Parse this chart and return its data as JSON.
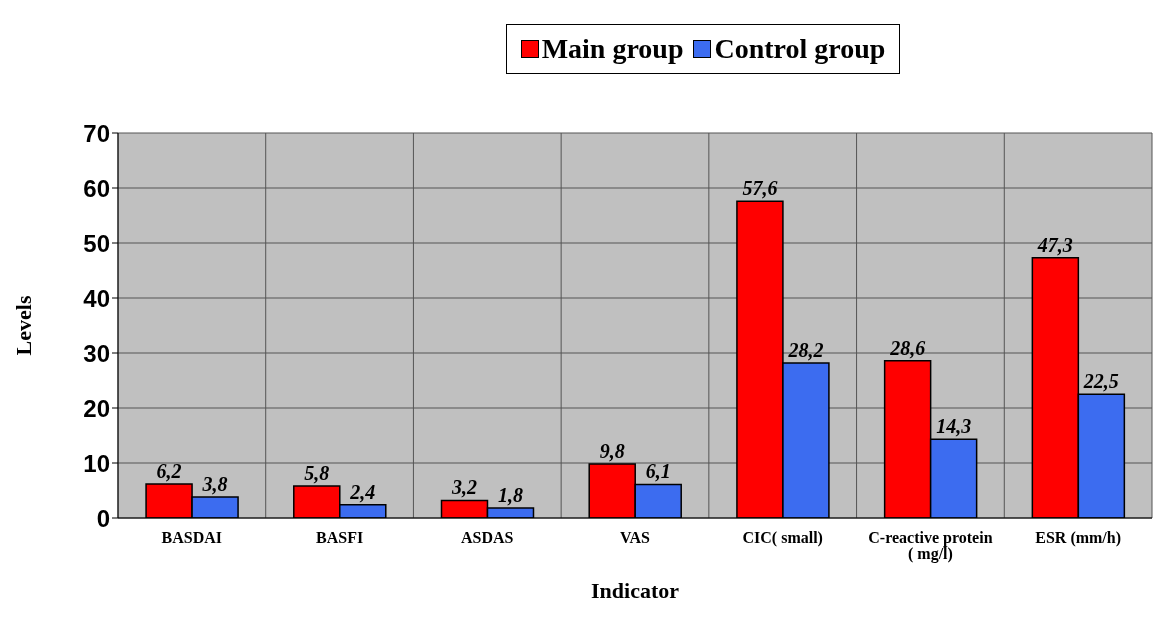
{
  "chart_data": {
    "type": "bar",
    "xlabel": "Indicator",
    "ylabel": "Levels",
    "categories": [
      "BASDAI",
      "BASFI",
      "ASDAS",
      "VAS",
      "CIC( small)",
      "C-reactive protein ( mg/l)",
      "ESR (mm/h)"
    ],
    "series": [
      {
        "name": "Main group",
        "color": "#ff0000",
        "values": [
          6.2,
          5.8,
          3.2,
          9.8,
          57.6,
          28.6,
          47.3
        ],
        "value_labels": [
          "6,2",
          "5,8",
          "3,2",
          "9,8",
          "57,6",
          "28,6",
          "47,3"
        ]
      },
      {
        "name": "Control group",
        "color": "#3c6cf0",
        "values": [
          3.8,
          2.4,
          1.8,
          6.1,
          28.2,
          14.3,
          22.5
        ],
        "value_labels": [
          "3,8",
          "2,4",
          "1,8",
          "6,1",
          "28,2",
          "14,3",
          "22,5"
        ]
      }
    ],
    "ylim": [
      0,
      70
    ],
    "yticks": [
      0,
      10,
      20,
      30,
      40,
      50,
      60,
      70
    ],
    "grid": true,
    "legend": "top"
  }
}
